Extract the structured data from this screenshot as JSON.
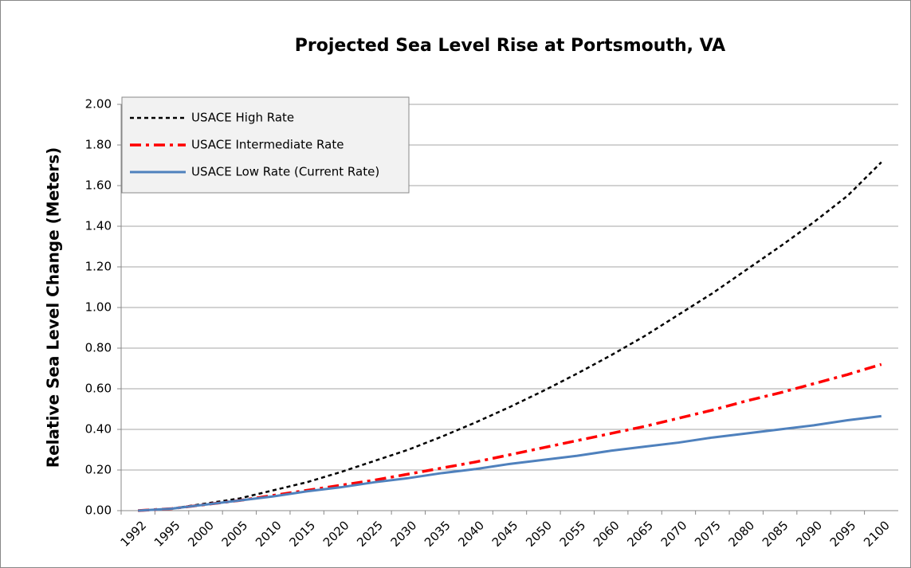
{
  "chart_data": {
    "type": "line",
    "title": "Projected Sea Level Rise at Portsmouth, VA",
    "y_label": "Relative Sea Level Change (Meters)",
    "categories": [
      "1992",
      "1995",
      "2000",
      "2005",
      "2010",
      "2015",
      "2020",
      "2025",
      "2030",
      "2035",
      "2040",
      "2045",
      "2050",
      "2055",
      "2060",
      "2065",
      "2070",
      "2075",
      "2080",
      "2085",
      "2090",
      "2095",
      "2100"
    ],
    "series": [
      {
        "name": "USACE High Rate",
        "color": "#000000",
        "dash": "dash",
        "values": [
          0,
          0.01,
          0.035,
          0.06,
          0.1,
          0.14,
          0.19,
          0.245,
          0.3,
          0.365,
          0.435,
          0.51,
          0.59,
          0.675,
          0.765,
          0.86,
          0.965,
          1.07,
          1.185,
          1.3,
          1.42,
          1.55,
          1.715
        ]
      },
      {
        "name": "USACE Intermediate Rate",
        "color": "#ff0000",
        "dash": "dashdot",
        "values": [
          0,
          0.01,
          0.03,
          0.05,
          0.075,
          0.1,
          0.125,
          0.15,
          0.18,
          0.21,
          0.24,
          0.275,
          0.31,
          0.345,
          0.38,
          0.415,
          0.455,
          0.495,
          0.54,
          0.58,
          0.625,
          0.67,
          0.72
        ]
      },
      {
        "name": "USACE Low Rate (Current Rate)",
        "color": "#4f81bd",
        "dash": "solid",
        "values": [
          0,
          0.01,
          0.03,
          0.05,
          0.07,
          0.095,
          0.115,
          0.14,
          0.16,
          0.185,
          0.205,
          0.23,
          0.25,
          0.27,
          0.295,
          0.315,
          0.335,
          0.36,
          0.38,
          0.4,
          0.42,
          0.445,
          0.465
        ]
      }
    ],
    "ylim": [
      0,
      2
    ],
    "yticks": [
      {
        "value": 0,
        "label": "0.00"
      },
      {
        "value": 0.2,
        "label": "0.20"
      },
      {
        "value": 0.4,
        "label": "0.40"
      },
      {
        "value": 0.6,
        "label": "0.60"
      },
      {
        "value": 0.8,
        "label": "0.80"
      },
      {
        "value": 1,
        "label": "1.00"
      },
      {
        "value": 1.2,
        "label": "1.20"
      },
      {
        "value": 1.4,
        "label": "1.40"
      },
      {
        "value": 1.6,
        "label": "1.60"
      },
      {
        "value": 1.8,
        "label": "1.80"
      },
      {
        "value": 2,
        "label": "2.00"
      }
    ],
    "grid": true,
    "legend": "top-left"
  }
}
